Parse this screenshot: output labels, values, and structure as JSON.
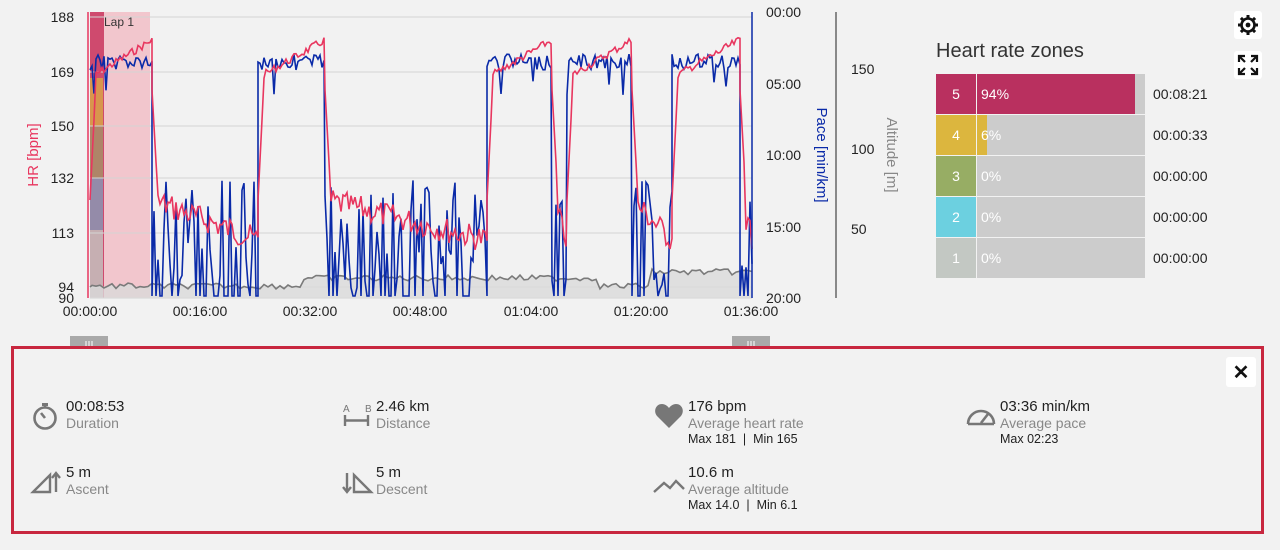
{
  "chart": {
    "lap_label": "Lap 1",
    "hr_axis_label": "HR [bpm]",
    "pace_axis_label": "Pace [min/km]",
    "altitude_axis_label": "Altitude [m]",
    "hr_ticks": [
      "188",
      "169",
      "150",
      "132",
      "113",
      "94",
      "90"
    ],
    "pace_ticks": [
      "00:00",
      "05:00",
      "10:00",
      "15:00",
      "20:00"
    ],
    "altitude_ticks": [
      "150",
      "100",
      "50"
    ],
    "time_ticks": [
      "00:00:00",
      "00:16:00",
      "00:32:00",
      "00:48:00",
      "01:04:00",
      "01:20:00",
      "01:36:00"
    ],
    "colors": {
      "hr": "#e8365f",
      "pace": "#0a2aa8",
      "altitude": "#7a7a7a",
      "lap": "#f2c6cd"
    }
  },
  "zones": {
    "title": "Heart rate zones",
    "items": [
      {
        "zone": "5",
        "percent": "94%",
        "fraction": 0.94,
        "time": "00:08:21",
        "color": "#b9305f"
      },
      {
        "zone": "4",
        "percent": "6%",
        "fraction": 0.06,
        "time": "00:00:33",
        "color": "#dcb63e"
      },
      {
        "zone": "3",
        "percent": "0%",
        "fraction": 0.0,
        "time": "00:00:00",
        "color": "#97ad64"
      },
      {
        "zone": "2",
        "percent": "0%",
        "fraction": 0.0,
        "time": "00:00:00",
        "color": "#6cd0e0"
      },
      {
        "zone": "1",
        "percent": "0%",
        "fraction": 0.0,
        "time": "00:00:00",
        "color": "#c3c8c3"
      }
    ]
  },
  "details": {
    "duration": {
      "value": "00:08:53",
      "label": "Duration"
    },
    "distance": {
      "value": "2.46 km",
      "label": "Distance"
    },
    "heart_rate": {
      "value": "176 bpm",
      "label": "Average heart rate",
      "max": "Max 181",
      "sep": "|",
      "min": "Min 165"
    },
    "pace": {
      "value": "03:36 min/km",
      "label": "Average pace",
      "max": "Max 02:23"
    },
    "ascent": {
      "value": "5 m",
      "label": "Ascent"
    },
    "descent": {
      "value": "5 m",
      "label": "Descent"
    },
    "altitude": {
      "value": "10.6 m",
      "label": "Average altitude",
      "max": "Max 14.0",
      "sep": "|",
      "min": "Min 6.1"
    },
    "close_label": "✕",
    "distance_ab": {
      "a": "A",
      "b": "B"
    }
  },
  "icons": [
    "gear-icon",
    "fullscreen-icon",
    "stopwatch-icon",
    "distance-icon",
    "heart-icon",
    "speedometer-icon",
    "ascent-icon",
    "descent-icon",
    "mountain-icon",
    "close-icon"
  ]
}
